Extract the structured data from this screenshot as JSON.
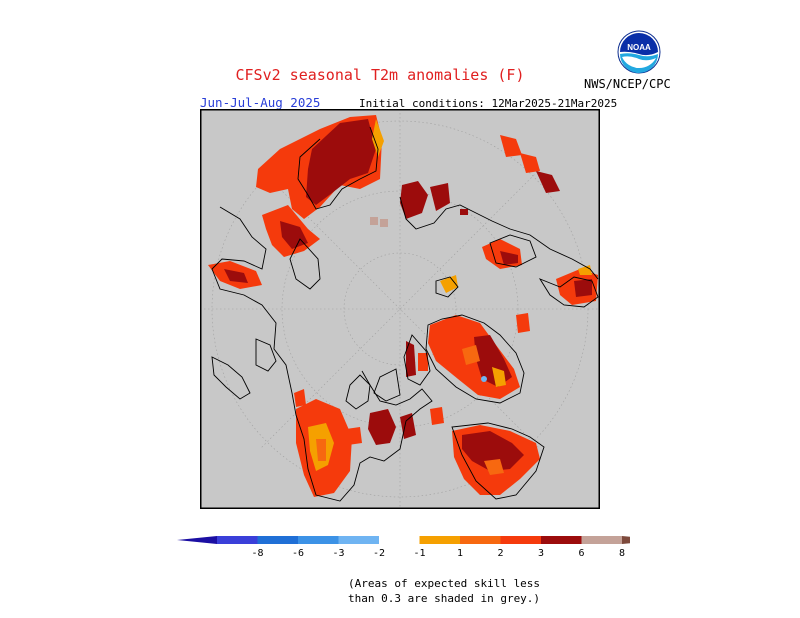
{
  "title": "CFSv2 seasonal T2m anomalies (F)",
  "season": "Jun-Jul-Aug 2025",
  "initial_conditions": "Initial conditions: 12Mar2025-21Mar2025",
  "organization": "NWS/NCEP/CPC",
  "logo_text": "NOAA",
  "colorbar": {
    "ticks": [
      "-8",
      "-6",
      "-3",
      "-2",
      "-1",
      "1",
      "2",
      "3",
      "6",
      "8"
    ],
    "colors": [
      "#1b0fa3",
      "#3a3fd9",
      "#1f6fd6",
      "#3c92e6",
      "#6fb4f2",
      "#ffffff",
      "#f5a000",
      "#f76810",
      "#f53a0c",
      "#9c0c0c",
      "#c4a298",
      "#7e4a3c"
    ]
  },
  "note": [
    "(Areas of expected skill less",
    "than 0.3 are shaded in grey.)"
  ]
}
